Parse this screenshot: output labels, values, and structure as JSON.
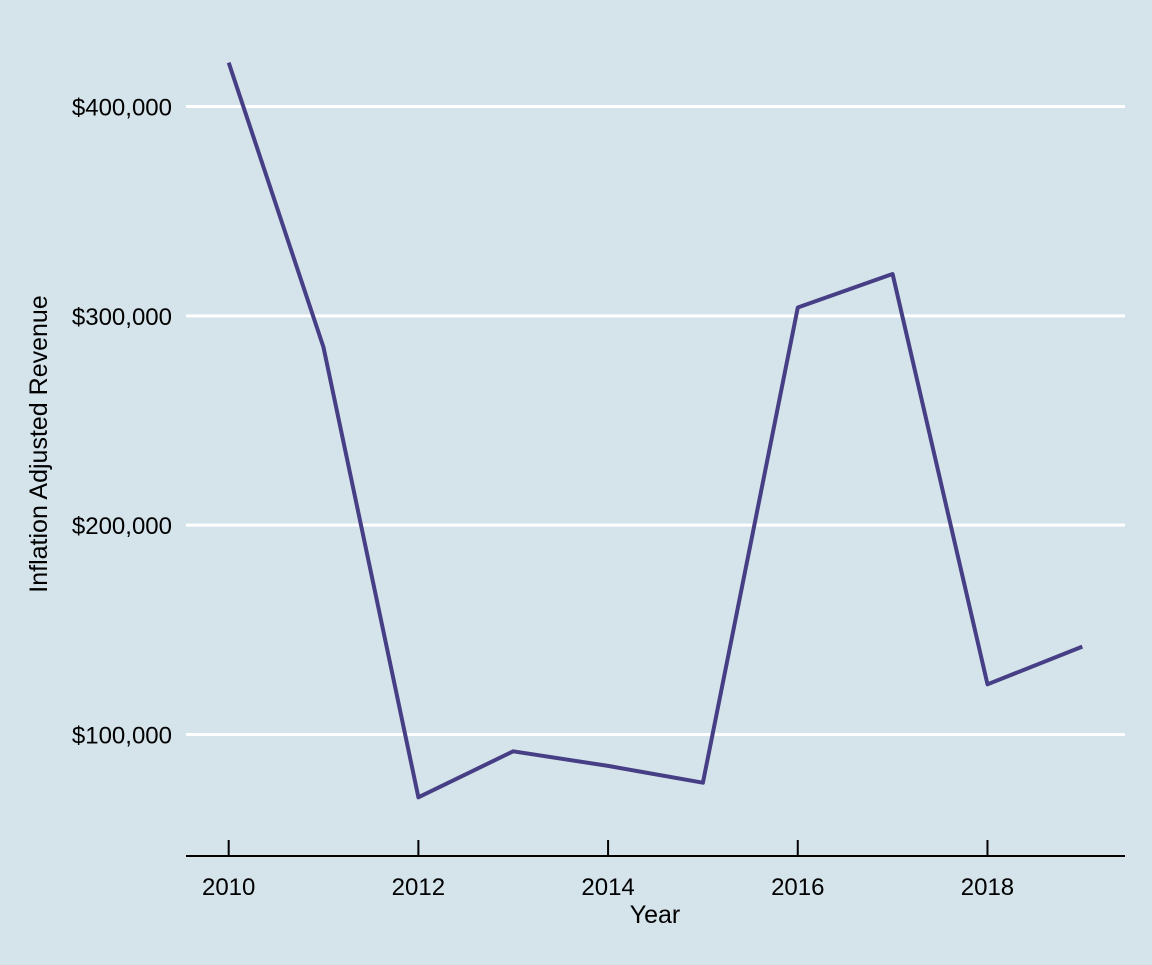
{
  "chart_data": {
    "type": "line",
    "title": "",
    "xlabel": "Year",
    "ylabel": "Inflation Adjusted Revenue",
    "x": [
      2010,
      2011,
      2012,
      2013,
      2014,
      2015,
      2016,
      2017,
      2018,
      2019
    ],
    "series": [
      {
        "values": [
          421000,
          285000,
          70000,
          92000,
          85000,
          77000,
          304000,
          320000,
          124000,
          142000
        ]
      }
    ],
    "xlim": [
      2009.55,
      2019.45
    ],
    "ylim": [
      52000,
      427000
    ],
    "x_ticks": [
      2010,
      2012,
      2014,
      2016,
      2018
    ],
    "x_tick_labels": [
      "2010",
      "2012",
      "2014",
      "2016",
      "2018"
    ],
    "y_ticks": [
      100000,
      200000,
      300000,
      400000
    ],
    "y_tick_labels": [
      "$100,000",
      "$200,000",
      "$300,000",
      "$400,000"
    ],
    "grid": "horizontal-major",
    "legend": "none",
    "colors": {
      "background": "#d5e3eb",
      "line": "#473f85",
      "grid": "#ffffff",
      "axis": "#000000"
    }
  }
}
